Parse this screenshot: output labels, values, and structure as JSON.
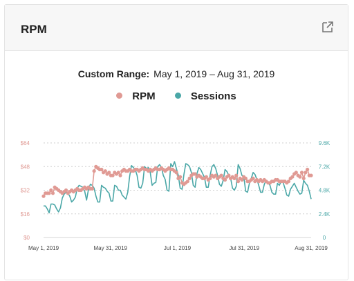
{
  "header": {
    "title": "RPM",
    "icon": "external-link-icon"
  },
  "range": {
    "label": "Custom Range:",
    "value": "May 1, 2019 – Aug 31, 2019"
  },
  "legend": [
    {
      "label": "RPM",
      "color": "#e09a94"
    },
    {
      "label": "Sessions",
      "color": "#4aa7a7"
    }
  ],
  "chart_data": {
    "type": "line",
    "x_start": "2019-05-01",
    "x_ticks": [
      "May 1, 2019",
      "May 31, 2019",
      "Jul 1, 2019",
      "Jul 31, 2019",
      "Aug 31, 2019"
    ],
    "y_left_ticks": [
      "$0",
      "$16",
      "$32",
      "$48",
      "$64"
    ],
    "y_left_range": [
      0,
      64
    ],
    "y_right_ticks": [
      "0",
      "2.4K",
      "4.8K",
      "7.2K",
      "9.6K"
    ],
    "y_right_range": [
      0,
      9600
    ],
    "grid": true,
    "series": [
      {
        "name": "RPM",
        "axis": "left",
        "color": "#e09a94",
        "markers": true,
        "values": [
          28,
          30,
          30,
          30,
          32,
          30,
          34,
          33,
          32,
          31,
          30,
          31,
          32,
          30,
          31,
          32,
          31,
          32,
          33,
          32,
          32,
          33,
          34,
          33,
          34,
          33,
          33,
          45,
          48,
          47,
          46,
          46,
          44,
          45,
          43,
          44,
          42,
          42,
          44,
          43,
          44,
          42,
          45,
          46,
          45,
          45,
          46,
          45,
          45,
          46,
          46,
          45,
          46,
          47,
          46,
          46,
          45,
          46,
          45,
          46,
          47,
          46,
          46,
          47,
          46,
          45,
          46,
          47,
          46,
          46,
          45,
          44,
          40,
          41,
          37,
          36,
          37,
          38,
          40,
          42,
          43,
          43,
          41,
          42,
          41,
          40,
          40,
          41,
          39,
          40,
          42,
          41,
          42,
          40,
          41,
          42,
          40,
          39,
          41,
          42,
          40,
          41,
          40,
          42,
          38,
          40,
          39,
          41,
          40,
          38,
          38,
          39,
          40,
          38,
          39,
          38,
          39,
          38,
          39,
          38,
          37,
          37,
          38,
          38,
          39,
          39,
          38,
          38,
          38,
          38,
          37,
          38,
          40,
          41,
          43,
          44,
          42,
          41,
          44,
          40,
          44,
          46,
          42,
          42
        ]
      },
      {
        "name": "Sessions",
        "axis": "right",
        "color": "#4aa7a7",
        "markers": false,
        "values": [
          3200,
          3200,
          2900,
          2500,
          3400,
          3400,
          3300,
          2900,
          2600,
          3000,
          4000,
          4400,
          4600,
          4500,
          4200,
          3600,
          3800,
          4100,
          5000,
          5300,
          5200,
          5100,
          4700,
          3800,
          4900,
          5400,
          5300,
          5000,
          4200,
          3600,
          3600,
          5300,
          5100,
          5000,
          4700,
          4500,
          3700,
          3700,
          5300,
          5200,
          4800,
          4800,
          4300,
          4100,
          3900,
          4600,
          6200,
          7300,
          7100,
          6900,
          6300,
          5100,
          5000,
          5500,
          7200,
          7000,
          7100,
          6600,
          5300,
          5500,
          5600,
          7200,
          7400,
          7100,
          6300,
          5900,
          4800,
          4700,
          7500,
          7200,
          7700,
          7000,
          6300,
          5000,
          4900,
          6400,
          7500,
          7400,
          7200,
          6600,
          5300,
          5100,
          6500,
          7100,
          6900,
          6500,
          6100,
          5100,
          5100,
          6300,
          7200,
          7400,
          7000,
          6300,
          5400,
          5200,
          5800,
          6900,
          6700,
          6300,
          6000,
          5000,
          4800,
          5200,
          7400,
          7000,
          6300,
          6200,
          4700,
          4600,
          5500,
          6000,
          6600,
          6400,
          5900,
          5300,
          4600,
          4600,
          5400,
          5800,
          5600,
          5300,
          4600,
          4400,
          4400,
          5500,
          5300,
          5700,
          5600,
          5000,
          4300,
          4200,
          4900,
          5200,
          5500,
          5100,
          4700,
          4400,
          4500,
          5800,
          5500,
          5300,
          4700,
          3900
        ]
      }
    ]
  }
}
